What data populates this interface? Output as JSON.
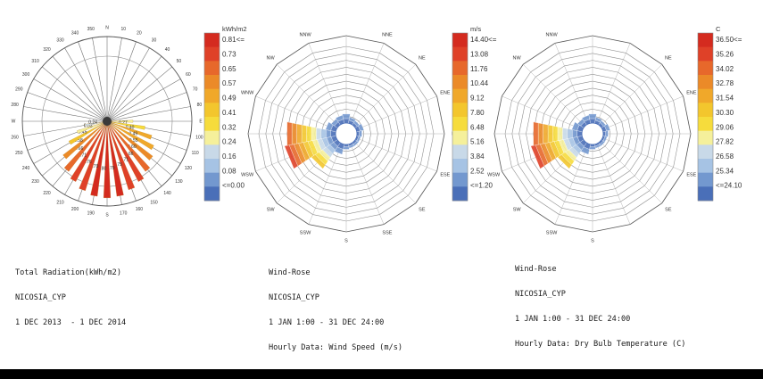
{
  "colors": {
    "scale": [
      "#4a6fb8",
      "#7398cf",
      "#a6c3e4",
      "#c8d9e8",
      "#f5f09b",
      "#f6dc3c",
      "#f3c62d",
      "#f0a82a",
      "#eb8a28",
      "#e7682b",
      "#df4128",
      "#d42b1f"
    ],
    "frame": "#444444",
    "grid": "#9a9a9a"
  },
  "captions": [
    {
      "lines": [
        "Total Radiation(kWh/m2)",
        "NICOSIA_CYP",
        "1 DEC 2013  - 1 DEC 2014"
      ]
    },
    {
      "lines": [
        "Wind-Rose",
        "NICOSIA_CYP",
        "1 JAN 1:00 - 31 DEC 24:00",
        "Hourly Data: Wind Speed (m/s)"
      ]
    },
    {
      "lines": [
        "Wind-Rose",
        "NICOSIA_CYP",
        "1 JAN 1:00 - 31 DEC 24:00",
        "Hourly Data: Dry Bulb Temperature (C)"
      ]
    }
  ],
  "chart_data": [
    {
      "type": "radial-bar",
      "unit": "kWh/m2",
      "legend_title": "kWh/m2",
      "legend_labels": [
        "0.81<=",
        "0.73",
        "0.65",
        "0.57",
        "0.49",
        "0.41",
        "0.32",
        "0.24",
        "0.16",
        "0.08",
        "<=0.00"
      ],
      "angle_labels": [
        "N",
        "10",
        "20",
        "30",
        "40",
        "50",
        "60",
        "70",
        "80",
        "E",
        "100",
        "110",
        "120",
        "130",
        "140",
        "150",
        "160",
        "170",
        "S",
        "190",
        "200",
        "210",
        "220",
        "230",
        "240",
        "250",
        "260",
        "W",
        "280",
        "290",
        "300",
        "310",
        "320",
        "330",
        "340",
        "350"
      ],
      "bars": [
        {
          "azimuth": 90,
          "value": 0.27,
          "label": "0.27"
        },
        {
          "azimuth": 100,
          "value": 0.4,
          "label": "0.40"
        },
        {
          "azimuth": 110,
          "value": 0.49,
          "label": "0.49"
        },
        {
          "azimuth": 120,
          "value": 0.55,
          "label": "0.55"
        },
        {
          "azimuth": 130,
          "value": 0.6,
          "label": "0.60"
        },
        {
          "azimuth": 140,
          "value": 0.66,
          "label": "0.66"
        },
        {
          "azimuth": 150,
          "value": 0.71,
          "label": "0.71"
        },
        {
          "azimuth": 160,
          "value": 0.75,
          "label": "0.75"
        },
        {
          "azimuth": 170,
          "value": 0.79,
          "label": "0.79"
        },
        {
          "azimuth": 180,
          "value": 0.8,
          "label": "0.80"
        },
        {
          "azimuth": 190,
          "value": 0.79,
          "label": "0.79"
        },
        {
          "azimuth": 200,
          "value": 0.76,
          "label": "0.76"
        },
        {
          "azimuth": 210,
          "value": 0.71,
          "label": "0.71"
        },
        {
          "azimuth": 220,
          "value": 0.66,
          "label": "0.66"
        },
        {
          "azimuth": 230,
          "value": 0.58,
          "label": "0.58"
        },
        {
          "azimuth": 240,
          "value": 0.45,
          "label": "0.45"
        },
        {
          "azimuth": 250,
          "value": 0.33,
          "label": "0.33"
        },
        {
          "azimuth": 260,
          "value": 0.24,
          "label": "0.24"
        }
      ]
    },
    {
      "type": "wind-rose",
      "unit": "m/s",
      "legend_title": "m/s",
      "legend_labels": [
        "14.40<=",
        "13.08",
        "11.76",
        "10.44",
        "9.12",
        "7.80",
        "6.48",
        "5.16",
        "3.84",
        "2.52",
        "<=1.20"
      ],
      "directions": [
        "N",
        "NNE",
        "NE",
        "ENE",
        "E",
        "ESE",
        "SE",
        "SSE",
        "S",
        "SSW",
        "SW",
        "WSW",
        "W",
        "WNW",
        "NW",
        "NNW"
      ],
      "visible_direction_labels": [
        "NW",
        "NNW",
        "NNE",
        "NE",
        "ENE",
        "E",
        "ESE",
        "SE",
        "SSE",
        "S",
        "SSW",
        "SW",
        "WSW",
        "WNW"
      ],
      "rings": 11,
      "petals": [
        {
          "direction": "N",
          "frequency": 0.18
        },
        {
          "direction": "NNE",
          "frequency": 0.12
        },
        {
          "direction": "NE",
          "frequency": 0.1
        },
        {
          "direction": "ENE",
          "frequency": 0.14
        },
        {
          "direction": "E",
          "frequency": 0.1
        },
        {
          "direction": "ESE",
          "frequency": 0.08
        },
        {
          "direction": "SE",
          "frequency": 0.08
        },
        {
          "direction": "SSE",
          "frequency": 0.08
        },
        {
          "direction": "S",
          "frequency": 0.1
        },
        {
          "direction": "SSW",
          "frequency": 0.2
        },
        {
          "direction": "SW",
          "frequency": 0.6
        },
        {
          "direction": "WSW",
          "frequency": 1.0
        },
        {
          "direction": "W",
          "frequency": 0.95
        },
        {
          "direction": "WNW",
          "frequency": 0.2
        },
        {
          "direction": "NW",
          "frequency": 0.14
        },
        {
          "direction": "NNW",
          "frequency": 0.16
        }
      ]
    },
    {
      "type": "wind-rose",
      "unit": "C",
      "legend_title": "C",
      "legend_labels": [
        "36.50<=",
        "35.26",
        "34.02",
        "32.78",
        "31.54",
        "30.30",
        "29.06",
        "27.82",
        "26.58",
        "25.34",
        "<=24.10"
      ],
      "directions": [
        "N",
        "NNE",
        "NE",
        "ENE",
        "E",
        "ESE",
        "SE",
        "SSE",
        "S",
        "SSW",
        "SW",
        "WSW",
        "W",
        "WNW",
        "NW",
        "NNW"
      ],
      "visible_direction_labels": [
        "NW",
        "NNW",
        "NE",
        "ENE",
        "E",
        "ESE",
        "SE",
        "S",
        "SSW",
        "SW",
        "WSW"
      ],
      "rings": 11,
      "petals": [
        {
          "direction": "N",
          "frequency": 0.18
        },
        {
          "direction": "NNE",
          "frequency": 0.12
        },
        {
          "direction": "NE",
          "frequency": 0.1
        },
        {
          "direction": "ENE",
          "frequency": 0.14
        },
        {
          "direction": "E",
          "frequency": 0.1
        },
        {
          "direction": "ESE",
          "frequency": 0.08
        },
        {
          "direction": "SE",
          "frequency": 0.08
        },
        {
          "direction": "SSE",
          "frequency": 0.08
        },
        {
          "direction": "S",
          "frequency": 0.1
        },
        {
          "direction": "SSW",
          "frequency": 0.2
        },
        {
          "direction": "SW",
          "frequency": 0.6
        },
        {
          "direction": "WSW",
          "frequency": 1.0
        },
        {
          "direction": "W",
          "frequency": 0.95
        },
        {
          "direction": "WNW",
          "frequency": 0.2
        },
        {
          "direction": "NW",
          "frequency": 0.14
        },
        {
          "direction": "NNW",
          "frequency": 0.16
        }
      ]
    }
  ]
}
